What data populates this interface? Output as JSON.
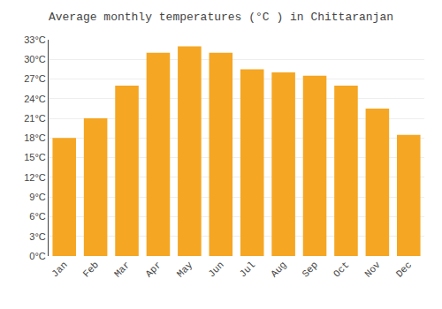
{
  "chart_data": {
    "type": "bar",
    "title": "Average monthly temperatures (°C ) in Chittaranjan",
    "categories": [
      "Jan",
      "Feb",
      "Mar",
      "Apr",
      "May",
      "Jun",
      "Jul",
      "Aug",
      "Sep",
      "Oct",
      "Nov",
      "Dec"
    ],
    "values": [
      18,
      21,
      26,
      31,
      32,
      31,
      28.5,
      28,
      27.5,
      26,
      22.5,
      18.5
    ],
    "color": "#F5A623",
    "ylim": [
      0,
      33
    ],
    "yticks": [
      {
        "value": 0,
        "label": "0°C"
      },
      {
        "value": 3,
        "label": "3°C"
      },
      {
        "value": 6,
        "label": "6°C"
      },
      {
        "value": 9,
        "label": "9°C"
      },
      {
        "value": 12,
        "label": "12°C"
      },
      {
        "value": 15,
        "label": "15°C"
      },
      {
        "value": 18,
        "label": "18°C"
      },
      {
        "value": 21,
        "label": "21°C"
      },
      {
        "value": 24,
        "label": "24°C"
      },
      {
        "value": 27,
        "label": "27°C"
      },
      {
        "value": 30,
        "label": "30°C"
      },
      {
        "value": 33,
        "label": "33°C"
      }
    ],
    "grid": true
  }
}
